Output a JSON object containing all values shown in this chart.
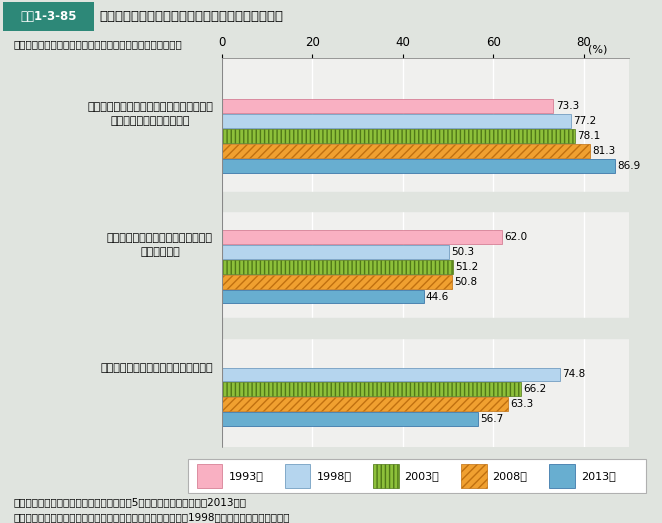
{
  "title_tag": "図表1-3-85",
  "title_text": "親世代・子ども世代との関係についての意識の推移",
  "subtitle": "「まったく賛成」「どちらかといえば賛成」とした人の割合",
  "xticks": [
    0,
    20,
    40,
    60,
    80
  ],
  "xlim": [
    0,
    90
  ],
  "categories": [
    "夫や妻は自分達のことを多少犠牲にしても\n子どものことを優先すべき",
    "年をとった親は子ども夫婦と一緒に\n暮らすべきだ",
    "年老いた親の介護は家族が担うべきだ"
  ],
  "years": [
    "1993年",
    "1998年",
    "2003年",
    "2008年",
    "2013年"
  ],
  "values": [
    [
      73.3,
      77.2,
      78.1,
      81.3,
      86.9
    ],
    [
      62.0,
      50.3,
      51.2,
      50.8,
      44.6
    ],
    [
      null,
      74.8,
      66.2,
      63.3,
      56.7
    ]
  ],
  "bar_facecolors": [
    "#f9b0c2",
    "#b5d5ee",
    "#8dc03a",
    "#f0a030",
    "#68aed0"
  ],
  "bar_edgecolors": [
    "#d07088",
    "#6090b8",
    "#507818",
    "#c07010",
    "#2868a0"
  ],
  "hatch_patterns": [
    "",
    "",
    "||||",
    "////",
    "===="
  ],
  "bar_height": 0.1,
  "bar_gap": 0.008,
  "group_centers": [
    2.08,
    1.13,
    0.24
  ],
  "ylim": [
    -0.18,
    2.65
  ],
  "background_color": "#e0e4df",
  "plot_bg_color": "#f0f0ee",
  "header_bg": "#45a898",
  "header_tag_bg": "#2d8878",
  "note1": "資料：国立社会保障・人口問題研究所「第5回全国家庭動向調査」（2013年）",
  "note2": "（注）　「年老いた親の介護は家族が担うべきだ」については1998年の調査から追加された。",
  "legend_labels": [
    "1993年",
    "1998年",
    "2003年",
    "2008年",
    "2013年"
  ]
}
